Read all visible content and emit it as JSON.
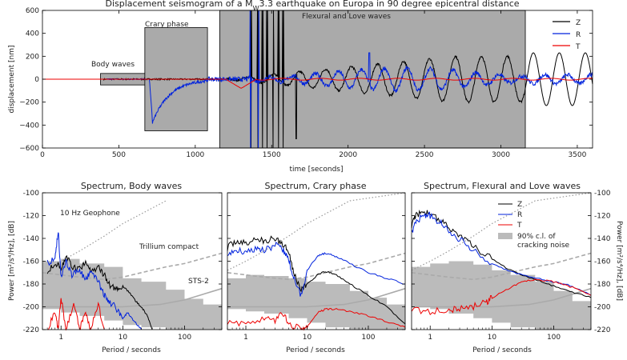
{
  "chart_data": [
    {
      "type": "line",
      "title": "Displacement seismogram of a M",
      "title_sub": "W",
      "title_rest": "3.3 earthquake on Europa in 90 degree epicentral distance",
      "xlabel": "time [seconds]",
      "ylabel": "displacement [nm]",
      "xlim": [
        0,
        3600
      ],
      "ylim": [
        -600,
        600
      ],
      "xticks": [
        "0",
        "500",
        "1000",
        "1500",
        "2000",
        "2500",
        "3000",
        "3500"
      ],
      "xtick_values": [
        0,
        500,
        1000,
        1500,
        2000,
        2500,
        3000,
        3500
      ],
      "yticks": [
        "600",
        "400",
        "200",
        "0",
        "−200",
        "−400",
        "−600"
      ],
      "ytick_values": [
        600,
        400,
        200,
        0,
        -200,
        -400,
        -600
      ],
      "legend_position": "top-right",
      "series": [
        {
          "name": "Z",
          "color": "#000000"
        },
        {
          "name": "R",
          "color": "#0022dd"
        },
        {
          "name": "T",
          "color": "#ee0000"
        }
      ],
      "phase_windows": [
        {
          "label": "Body waves",
          "t_start": 380,
          "t_end": 680,
          "amp_min": -50,
          "amp_max": 50
        },
        {
          "label": "Crary phase",
          "t_start": 670,
          "t_end": 1080,
          "amp_min": -450,
          "amp_max": 450
        },
        {
          "label": "Flexural and Love waves",
          "t_start": 1160,
          "t_end": 3160,
          "amp_min": -600,
          "amp_max": 600
        }
      ],
      "spikes": [
        1365,
        1410,
        1440,
        1470,
        1510,
        1545,
        1575
      ],
      "longperiod_onset": 1300,
      "longperiod_period": 170
    },
    {
      "type": "line",
      "title": "Spectrum, Body waves",
      "xlabel": "Period / seconds",
      "ylabel": "Power [m²/s⁴/Hz], [dB]",
      "x_scale": "log",
      "xlim": [
        0.5,
        400
      ],
      "ylim": [
        -220,
        -100
      ],
      "xticks": [
        "1",
        "10",
        "100"
      ],
      "yticks": [
        "-100",
        "-120",
        "-140",
        "-160",
        "-180",
        "-200",
        "-220"
      ],
      "annotations": [
        "10 Hz Geophone",
        "Trillium compact",
        "STS-2"
      ],
      "series": [
        {
          "name": "Z",
          "x": [
            0.6,
            0.8,
            1,
            1.2,
            1.5,
            2,
            2.5,
            3,
            4,
            5,
            6,
            8,
            10,
            13,
            16,
            20,
            25,
            30
          ],
          "values": [
            -168,
            -162,
            -166,
            -155,
            -165,
            -167,
            -160,
            -170,
            -165,
            -172,
            -180,
            -185,
            -182,
            -188,
            -195,
            -200,
            -208,
            -220
          ]
        },
        {
          "name": "R",
          "x": [
            0.6,
            0.8,
            0.9,
            1,
            1.2,
            1.5,
            2,
            2.5,
            3,
            4,
            5,
            6,
            8,
            10,
            12,
            15,
            20
          ],
          "values": [
            -162,
            -158,
            -132,
            -175,
            -160,
            -172,
            -168,
            -175,
            -170,
            -178,
            -190,
            -195,
            -202,
            -210,
            -205,
            -212,
            -220
          ]
        },
        {
          "name": "T",
          "x": [
            0.6,
            0.8,
            0.9,
            1,
            1.2,
            1.6,
            2,
            2.5,
            3,
            4,
            5
          ],
          "values": [
            -220,
            -205,
            -220,
            -192,
            -220,
            -196,
            -220,
            -205,
            -220,
            -198,
            -220
          ]
        },
        {
          "name": "Geophone noise",
          "x": [
            0.7,
            1,
            2,
            5,
            10,
            50
          ],
          "values": [
            -166,
            -160,
            -151,
            -138,
            -127,
            -107
          ]
        },
        {
          "name": "Trillium noise",
          "x": [
            0.5,
            1,
            2,
            5,
            10,
            20,
            50,
            100,
            400
          ],
          "values": [
            -170,
            -172,
            -174,
            -176,
            -174,
            -170,
            -165,
            -162,
            -153
          ]
        },
        {
          "name": "STS-2 noise",
          "x": [
            0.5,
            1,
            10,
            40,
            100,
            400
          ],
          "values": [
            -200,
            -200,
            -200,
            -198,
            -194,
            -184
          ]
        }
      ],
      "noise_band": {
        "x": [
          0.5,
          1,
          2,
          5,
          10,
          20,
          50,
          100,
          200,
          400
        ],
        "upper": [
          -160,
          -158,
          -162,
          -165,
          -175,
          -178,
          -185,
          -193,
          -198,
          -205
        ],
        "lower": [
          -202,
          -205,
          -208,
          -212,
          -216,
          -218,
          -220,
          -220,
          -220,
          -220
        ]
      }
    },
    {
      "type": "line",
      "title": "Spectrum, Crary phase",
      "xlabel": "Period / seconds",
      "x_scale": "log",
      "xlim": [
        0.5,
        400
      ],
      "ylim": [
        -220,
        -100
      ],
      "xticks": [
        "1",
        "10",
        "100"
      ],
      "series": [
        {
          "name": "Z",
          "x": [
            0.5,
            0.7,
            1,
            1.5,
            2,
            3,
            4,
            5,
            6,
            8,
            10,
            15,
            20,
            30,
            50,
            100,
            200,
            400
          ],
          "values": [
            -148,
            -142,
            -145,
            -140,
            -143,
            -140,
            -145,
            -150,
            -170,
            -185,
            -180,
            -172,
            -169,
            -172,
            -180,
            -190,
            -200,
            -215
          ]
        },
        {
          "name": "R",
          "x": [
            0.5,
            0.7,
            1,
            1.5,
            2,
            3,
            4,
            5,
            6,
            8,
            10,
            15,
            20,
            30,
            50,
            100,
            200,
            400
          ],
          "values": [
            -155,
            -150,
            -152,
            -148,
            -150,
            -146,
            -150,
            -158,
            -175,
            -190,
            -168,
            -155,
            -153,
            -156,
            -162,
            -170,
            -175,
            -180
          ]
        },
        {
          "name": "T",
          "x": [
            0.5,
            1,
            2,
            3,
            4,
            5,
            8,
            10,
            15,
            20,
            30,
            50,
            100,
            200,
            400
          ],
          "values": [
            -215,
            -213,
            -210,
            -212,
            -205,
            -215,
            -220,
            -218,
            -205,
            -202,
            -202,
            -204,
            -208,
            -213,
            -218
          ]
        },
        {
          "name": "Geophone noise",
          "x": [
            0.5,
            1,
            2,
            5,
            10,
            50,
            400
          ],
          "values": [
            -168,
            -160,
            -151,
            -138,
            -127,
            -107,
            -87
          ]
        },
        {
          "name": "Trillium noise",
          "x": [
            0.5,
            1,
            2,
            5,
            10,
            20,
            50,
            100,
            400
          ],
          "values": [
            -170,
            -172,
            -174,
            -176,
            -174,
            -170,
            -165,
            -162,
            -153
          ]
        },
        {
          "name": "STS-2 noise",
          "x": [
            0.5,
            1,
            10,
            40,
            100,
            400
          ],
          "values": [
            -200,
            -200,
            -200,
            -198,
            -194,
            -184
          ]
        }
      ],
      "noise_band": {
        "x": [
          0.5,
          1,
          2,
          5,
          10,
          20,
          50,
          100,
          200,
          400
        ],
        "upper": [
          -175,
          -172,
          -173,
          -175,
          -178,
          -180,
          -186,
          -192,
          -198,
          -205
        ],
        "lower": [
          -202,
          -204,
          -206,
          -210,
          -214,
          -218,
          -220,
          -220,
          -220,
          -220
        ]
      }
    },
    {
      "type": "line",
      "title": "Spectrum, Flexural and Love waves",
      "xlabel": "Period / seconds",
      "ylabel": "Power [m²/s⁴/Hz], [dB]",
      "x_scale": "log",
      "xlim": [
        0.5,
        400
      ],
      "ylim": [
        -220,
        -100
      ],
      "xticks": [
        "1",
        "10",
        "100"
      ],
      "yticks": [
        "-100",
        "-120",
        "-140",
        "-160",
        "-180",
        "-200",
        "-220"
      ],
      "legend_position": "top-right",
      "legend_entries": [
        "Z",
        "R",
        "T",
        "90% c.l. of cracking noise"
      ],
      "series": [
        {
          "name": "Z",
          "x": [
            0.5,
            0.6,
            0.8,
            1,
            1.5,
            2,
            3,
            5,
            10,
            20,
            50,
            100,
            200,
            400
          ],
          "values": [
            -128,
            -120,
            -117,
            -118,
            -124,
            -130,
            -138,
            -147,
            -158,
            -168,
            -176,
            -182,
            -187,
            -192
          ]
        },
        {
          "name": "R",
          "x": [
            0.5,
            0.6,
            0.8,
            1,
            1.5,
            2,
            3,
            5,
            10,
            20,
            50,
            100,
            200,
            400
          ],
          "values": [
            -135,
            -125,
            -120,
            -120,
            -127,
            -133,
            -141,
            -150,
            -162,
            -169,
            -175,
            -178,
            -182,
            -190
          ]
        },
        {
          "name": "T",
          "x": [
            0.5,
            1,
            2,
            3,
            5,
            8,
            10,
            20,
            30,
            50,
            100,
            200,
            400
          ],
          "values": [
            -202,
            -204,
            -203,
            -202,
            -200,
            -196,
            -192,
            -183,
            -178,
            -176,
            -178,
            -183,
            -190
          ]
        },
        {
          "name": "Geophone noise",
          "x": [
            0.5,
            1,
            2,
            5,
            10,
            50,
            400
          ],
          "values": [
            -168,
            -160,
            -151,
            -138,
            -127,
            -107,
            -87
          ]
        },
        {
          "name": "Trillium noise",
          "x": [
            0.5,
            1,
            2,
            5,
            10,
            20,
            50,
            100,
            400
          ],
          "values": [
            -170,
            -172,
            -174,
            -176,
            -174,
            -170,
            -165,
            -162,
            -153
          ]
        },
        {
          "name": "STS-2 noise",
          "x": [
            0.5,
            1,
            10,
            40,
            100,
            400
          ],
          "values": [
            -200,
            -200,
            -200,
            -198,
            -194,
            -184
          ]
        }
      ],
      "noise_band": {
        "x": [
          0.5,
          1,
          2,
          5,
          10,
          20,
          50,
          100,
          200,
          400
        ],
        "upper": [
          -165,
          -162,
          -160,
          -163,
          -168,
          -172,
          -178,
          -186,
          -195,
          -205
        ],
        "lower": [
          -200,
          -202,
          -206,
          -210,
          -214,
          -218,
          -220,
          -220,
          -220,
          -220
        ]
      }
    }
  ]
}
